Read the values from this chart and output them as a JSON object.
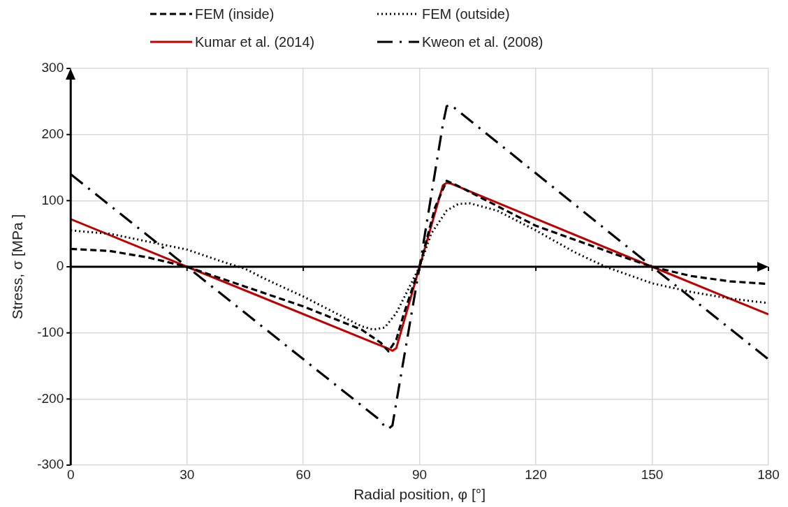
{
  "chart_data": {
    "type": "line",
    "xlabel": "Radial position, φ [°]",
    "ylabel": "Stress, σ [MPa ]",
    "xlim": [
      0,
      180
    ],
    "xticks": [
      0,
      30,
      60,
      90,
      120,
      150,
      180
    ],
    "ylim": [
      -300,
      300
    ],
    "yticks": [
      -300,
      -200,
      -100,
      0,
      100,
      200,
      300
    ],
    "grid": true,
    "legend": "top",
    "marker": "none",
    "series": [
      {
        "name": "FEM (inside)",
        "color": "#000000",
        "line_style": "dashed",
        "x": [
          0,
          10,
          20,
          30,
          45,
          60,
          75,
          80,
          82,
          84,
          86,
          90,
          94,
          97,
          100,
          120,
          140,
          150,
          160,
          170,
          180
        ],
        "values": [
          27,
          24,
          14,
          0,
          -30,
          -60,
          -95,
          -115,
          -128,
          -110,
          -70,
          0,
          90,
          130,
          122,
          62,
          20,
          0,
          -14,
          -22,
          -26
        ]
      },
      {
        "name": "FEM (outside)",
        "color": "#000000",
        "line_style": "dotted",
        "x": [
          0,
          10,
          20,
          30,
          40,
          45,
          50,
          60,
          70,
          75,
          78,
          81,
          84,
          87,
          90,
          93,
          97,
          100,
          103,
          110,
          120,
          130,
          138,
          150,
          160,
          170,
          180
        ],
        "values": [
          55,
          50,
          38,
          26,
          6,
          -3,
          -18,
          -45,
          -75,
          -90,
          -95,
          -92,
          -70,
          -35,
          0,
          50,
          85,
          95,
          96,
          85,
          55,
          22,
          0,
          -25,
          -38,
          -48,
          -55
        ]
      },
      {
        "name": "Kumar et al. (2014)",
        "color": "#c00000",
        "line_style": "solid",
        "x": [
          0,
          30,
          82,
          83,
          84,
          90,
          96,
          97,
          98,
          150,
          180
        ],
        "values": [
          72,
          0,
          -124,
          -127,
          -123,
          0,
          123,
          127,
          126,
          0,
          -72
        ]
      },
      {
        "name": "Kweon et al. (2008)",
        "color": "#000000",
        "line_style": "dashdot",
        "x": [
          0,
          30,
          80,
          81,
          82,
          83,
          84,
          90,
          96,
          97,
          98,
          150,
          180
        ],
        "values": [
          140,
          0,
          -233,
          -242,
          -245,
          -240,
          -205,
          0,
          215,
          243,
          245,
          0,
          -140
        ]
      }
    ]
  }
}
